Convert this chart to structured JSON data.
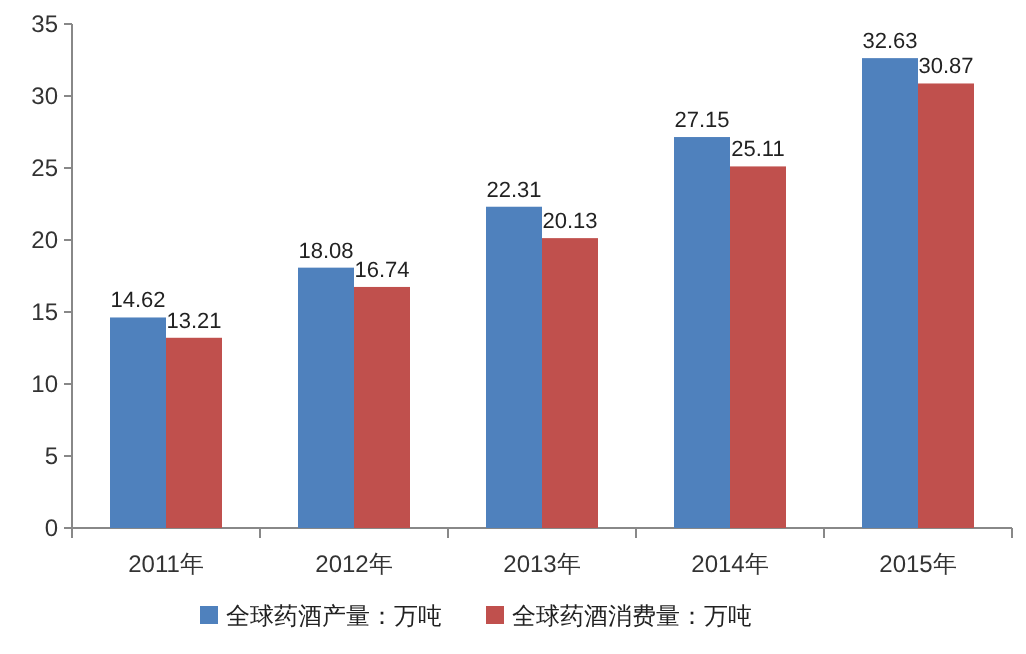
{
  "chart_data": {
    "type": "bar",
    "categories": [
      "2011年",
      "2012年",
      "2013年",
      "2014年",
      "2015年"
    ],
    "series": [
      {
        "name": "全球药酒产量：万吨",
        "color": "#4f81bd",
        "values": [
          14.62,
          18.08,
          22.31,
          27.15,
          32.63
        ]
      },
      {
        "name": "全球药酒消费量：万吨",
        "color": "#c0504d",
        "values": [
          13.21,
          16.74,
          20.13,
          25.11,
          30.87
        ]
      }
    ],
    "ylim": [
      0,
      35
    ],
    "yticks": [
      0,
      5,
      10,
      15,
      20,
      25,
      30,
      35
    ],
    "data_labels": true,
    "legend": "bottom",
    "grid": false
  }
}
